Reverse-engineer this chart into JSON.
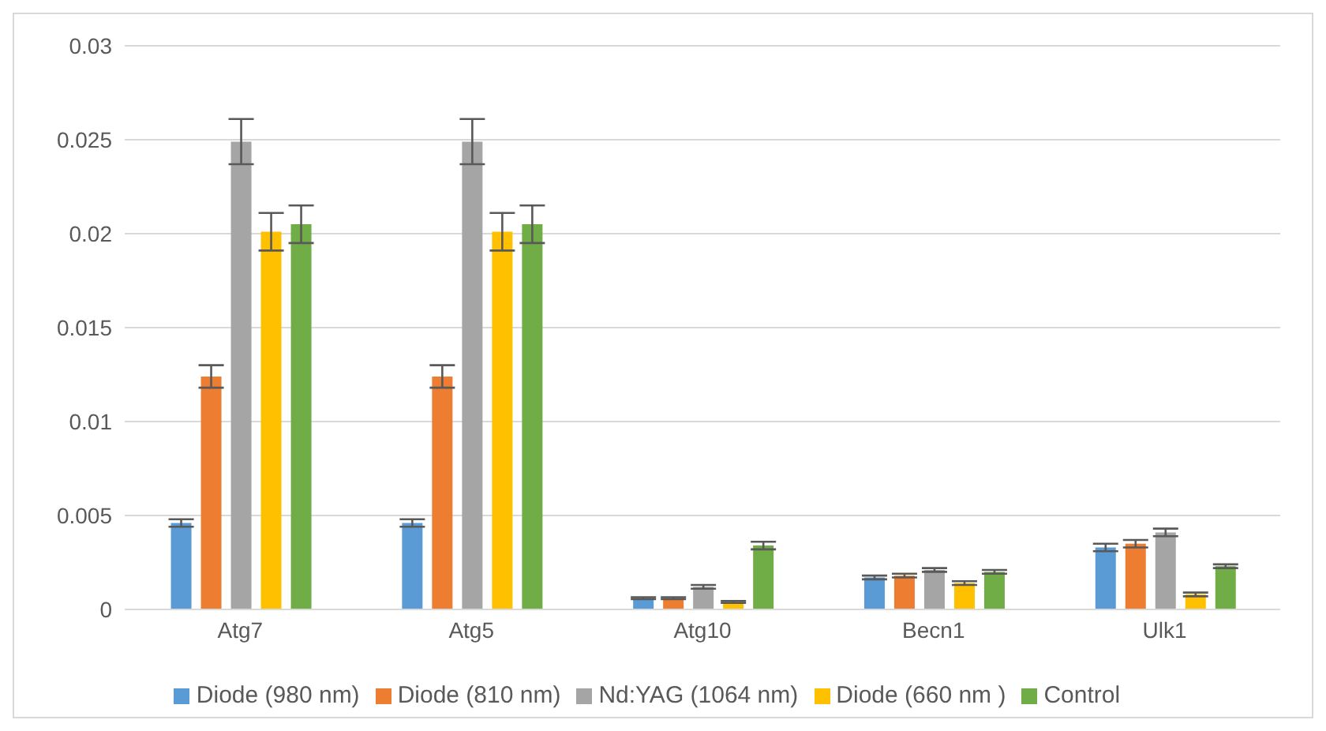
{
  "chart_data": {
    "type": "bar",
    "categories": [
      "Atg7",
      "Atg5",
      "Atg10",
      "Becn1",
      "Ulk1"
    ],
    "series": [
      {
        "name": "Diode (980 nm)",
        "color": "#5b9bd5",
        "values": [
          0.0046,
          0.0046,
          0.0006,
          0.0017,
          0.0033
        ],
        "errors": [
          0.0002,
          0.0002,
          5e-05,
          0.0001,
          0.0002
        ]
      },
      {
        "name": "Diode (810 nm)",
        "color": "#ed7d31",
        "values": [
          0.0124,
          0.0124,
          0.0006,
          0.0018,
          0.0035
        ],
        "errors": [
          0.0006,
          0.0006,
          5e-05,
          0.0001,
          0.0002
        ]
      },
      {
        "name": "Nd:YAG (1064 nm)",
        "color": "#a5a5a5",
        "values": [
          0.0249,
          0.0249,
          0.0012,
          0.0021,
          0.0041
        ],
        "errors": [
          0.0012,
          0.0012,
          0.0001,
          0.0001,
          0.0002
        ]
      },
      {
        "name": "Diode (660 nm )",
        "color": "#ffc000",
        "values": [
          0.0201,
          0.0201,
          0.0004,
          0.0014,
          0.0008
        ],
        "errors": [
          0.001,
          0.001,
          5e-05,
          0.0001,
          0.0001
        ]
      },
      {
        "name": "Control",
        "color": "#70ad47",
        "values": [
          0.0205,
          0.0205,
          0.0034,
          0.002,
          0.0023
        ],
        "errors": [
          0.001,
          0.001,
          0.0002,
          0.0001,
          0.0001
        ]
      }
    ],
    "ylim": [
      0,
      0.03
    ],
    "yticks": [
      0,
      0.005,
      0.01,
      0.015,
      0.02,
      0.025,
      0.03
    ],
    "grid": "y",
    "legend": "bottom"
  }
}
